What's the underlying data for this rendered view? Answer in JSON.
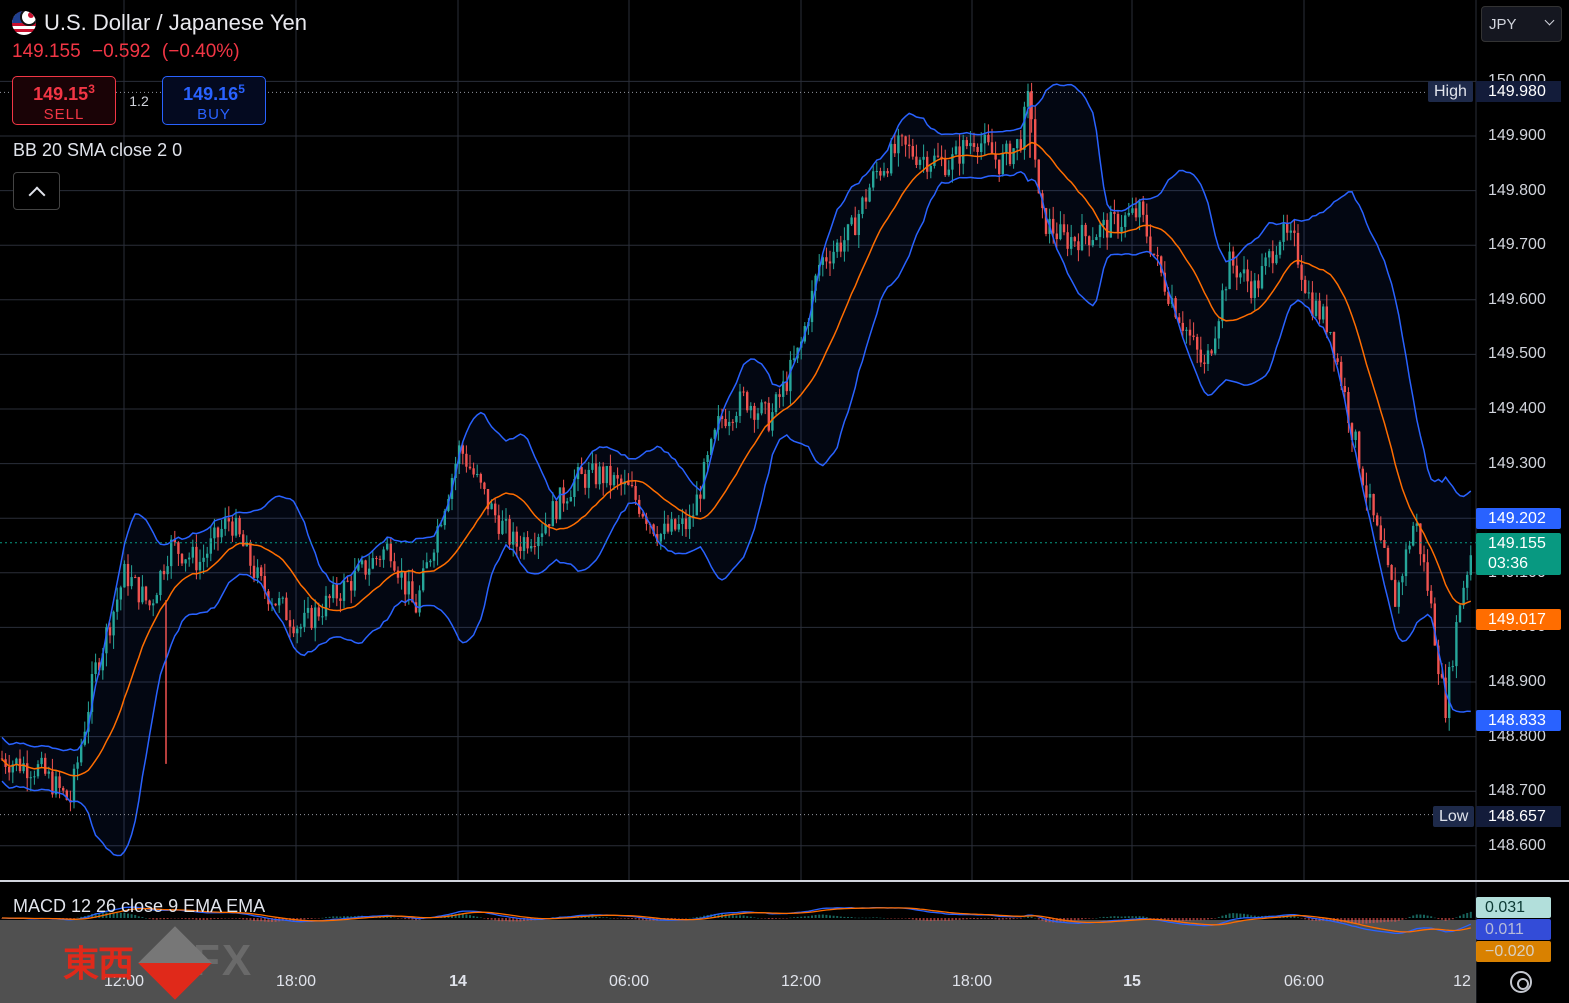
{
  "header": {
    "symbol_title": "U.S. Dollar / Japanese Yen",
    "last_price": "149.155",
    "change": "−0.592",
    "change_pct": "(−0.40%)"
  },
  "trade": {
    "sell_price_main": "149.15",
    "sell_price_sup": "3",
    "sell_label": "SELL",
    "spread": "1.2",
    "buy_price_main": "149.16",
    "buy_price_sup": "5",
    "buy_label": "BUY"
  },
  "indicators": {
    "bb_label": "BB 20 SMA close 2 0",
    "macd_label": "MACD 12 26 close 9 EMA EMA"
  },
  "currency_select": {
    "value": "JPY"
  },
  "price_axis": {
    "ticks": [
      "150.000",
      "149.900",
      "149.800",
      "149.700",
      "149.600",
      "149.500",
      "149.400",
      "149.300",
      "149.100",
      "149.000",
      "148.900",
      "148.800",
      "148.700",
      "148.600"
    ],
    "high_label": "High",
    "high_value": "149.980",
    "low_label": "Low",
    "low_value": "148.657",
    "bb_upper": "149.202",
    "current_price": "149.155",
    "countdown": "03:36",
    "bb_basis": "149.017",
    "bb_lower": "148.833"
  },
  "macd_values": {
    "macd": "0.031",
    "signal": "0.011",
    "histogram": "−0.020"
  },
  "time_axis": {
    "ticks": [
      "12:00",
      "18:00",
      "14",
      "06:00",
      "12:00",
      "18:00",
      "15",
      "06:00",
      "12"
    ]
  },
  "watermark": {
    "cn_text": "東西",
    "fx_text": "FX"
  },
  "colors": {
    "up": "#26a69a",
    "down": "#ef5350",
    "bb_band": "#2962ff",
    "bb_basis": "#ff6d00",
    "sell": "#f23645",
    "buy": "#2962ff",
    "current_price": "#089981"
  },
  "chart_data": {
    "type": "candlestick",
    "symbol": "USD/JPY",
    "ylim": [
      148.55,
      150.0
    ],
    "x_ticks": [
      "12:00",
      "18:00",
      "14",
      "06:00",
      "12:00",
      "18:00",
      "15",
      "06:00",
      "12"
    ],
    "price_path": [
      [
        0,
        148.76
      ],
      [
        40,
        148.74
      ],
      [
        70,
        148.68
      ],
      [
        95,
        148.92
      ],
      [
        125,
        149.1
      ],
      [
        150,
        149.04
      ],
      [
        170,
        149.15
      ],
      [
        200,
        149.12
      ],
      [
        230,
        149.2
      ],
      [
        260,
        149.08
      ],
      [
        300,
        149.0
      ],
      [
        330,
        149.05
      ],
      [
        360,
        149.1
      ],
      [
        390,
        149.15
      ],
      [
        415,
        149.03
      ],
      [
        440,
        149.2
      ],
      [
        460,
        149.33
      ],
      [
        490,
        149.22
      ],
      [
        515,
        149.15
      ],
      [
        540,
        149.18
      ],
      [
        575,
        149.27
      ],
      [
        600,
        149.28
      ],
      [
        630,
        149.25
      ],
      [
        660,
        149.17
      ],
      [
        690,
        149.19
      ],
      [
        720,
        149.38
      ],
      [
        745,
        149.42
      ],
      [
        770,
        149.38
      ],
      [
        800,
        149.51
      ],
      [
        820,
        149.67
      ],
      [
        850,
        149.72
      ],
      [
        875,
        149.83
      ],
      [
        900,
        149.88
      ],
      [
        925,
        149.86
      ],
      [
        950,
        149.85
      ],
      [
        975,
        149.9
      ],
      [
        1000,
        149.85
      ],
      [
        1020,
        149.89
      ],
      [
        1030,
        149.98
      ],
      [
        1040,
        149.75
      ],
      [
        1065,
        149.71
      ],
      [
        1090,
        149.72
      ],
      [
        1115,
        149.74
      ],
      [
        1140,
        149.76
      ],
      [
        1160,
        149.65
      ],
      [
        1185,
        149.55
      ],
      [
        1205,
        149.47
      ],
      [
        1230,
        149.67
      ],
      [
        1255,
        149.62
      ],
      [
        1280,
        149.72
      ],
      [
        1295,
        149.7
      ],
      [
        1310,
        149.6
      ],
      [
        1330,
        149.55
      ],
      [
        1350,
        149.38
      ],
      [
        1370,
        149.22
      ],
      [
        1395,
        149.05
      ],
      [
        1415,
        149.2
      ],
      [
        1430,
        149.05
      ],
      [
        1445,
        148.85
      ],
      [
        1460,
        149.05
      ],
      [
        1475,
        149.17
      ]
    ],
    "high": 149.98,
    "low": 148.657,
    "last": 149.155,
    "bb_upper_last": 149.202,
    "bb_basis_last": 149.017,
    "bb_lower_last": 148.833,
    "macd_last": {
      "macd": 0.031,
      "signal": 0.011,
      "histogram": -0.02
    }
  }
}
